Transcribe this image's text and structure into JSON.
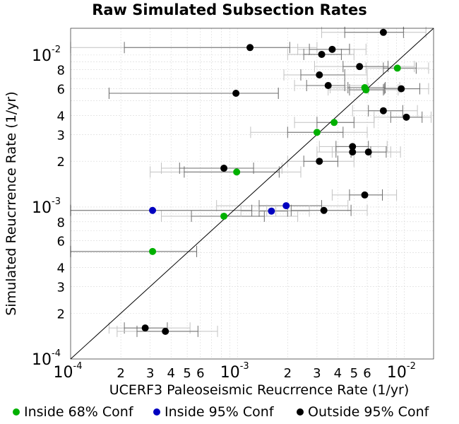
{
  "chart_data": {
    "type": "scatter",
    "title": "Raw Simulated Subsection Rates",
    "xlabel": "UCERF3 Paleoseismic Reucrrence Rate (1/yr)",
    "ylabel": "Simulated Reucrrence Rate (1/yr)",
    "xscale": "log",
    "yscale": "log",
    "xlim": [
      0.0001,
      0.015
    ],
    "ylim": [
      0.0001,
      0.015
    ],
    "grid": true,
    "reference_line": "y = x",
    "legend_position": "bottom",
    "x_tick_labels": [
      {
        "value": 0.0001,
        "base": "10",
        "exp": "-4"
      },
      {
        "value": 0.0002,
        "base": "2",
        "exp": ""
      },
      {
        "value": 0.0003,
        "base": "3",
        "exp": ""
      },
      {
        "value": 0.0004,
        "base": "4",
        "exp": ""
      },
      {
        "value": 0.0005,
        "base": "5",
        "exp": ""
      },
      {
        "value": 0.0006,
        "base": "6",
        "exp": ""
      },
      {
        "value": 0.001,
        "base": "10",
        "exp": "-3"
      },
      {
        "value": 0.002,
        "base": "2",
        "exp": ""
      },
      {
        "value": 0.003,
        "base": "3",
        "exp": ""
      },
      {
        "value": 0.004,
        "base": "4",
        "exp": ""
      },
      {
        "value": 0.005,
        "base": "5",
        "exp": ""
      },
      {
        "value": 0.006,
        "base": "6",
        "exp": ""
      },
      {
        "value": 0.01,
        "base": "10",
        "exp": "-2"
      }
    ],
    "y_tick_labels": [
      {
        "value": 0.0001,
        "base": "10",
        "exp": "-4"
      },
      {
        "value": 0.0002,
        "base": "2",
        "exp": ""
      },
      {
        "value": 0.0003,
        "base": "3",
        "exp": ""
      },
      {
        "value": 0.0004,
        "base": "4",
        "exp": ""
      },
      {
        "value": 0.0006,
        "base": "6",
        "exp": ""
      },
      {
        "value": 0.0008,
        "base": "8",
        "exp": ""
      },
      {
        "value": 0.001,
        "base": "10",
        "exp": "-3"
      },
      {
        "value": 0.002,
        "base": "2",
        "exp": ""
      },
      {
        "value": 0.003,
        "base": "3",
        "exp": ""
      },
      {
        "value": 0.004,
        "base": "4",
        "exp": ""
      },
      {
        "value": 0.006,
        "base": "6",
        "exp": ""
      },
      {
        "value": 0.008,
        "base": "8",
        "exp": ""
      },
      {
        "value": 0.01,
        "base": "10",
        "exp": "-2"
      }
    ],
    "series": [
      {
        "name": "Inside 68% Conf",
        "color": "#00b000",
        "points": [
          {
            "x": 0.0091,
            "y": 0.0082,
            "ci68": [
              0.0075,
              0.0118
            ],
            "ci95": [
              0.0059,
              0.014
            ]
          },
          {
            "x": 0.0058,
            "y": 0.0061,
            "ci68": [
              0.0046,
              0.0077
            ],
            "ci95": [
              0.0036,
              0.0094
            ]
          },
          {
            "x": 0.0059,
            "y": 0.0059,
            "ci68": [
              0.0047,
              0.0075
            ],
            "ci95": [
              0.0035,
              0.0092
            ]
          },
          {
            "x": 0.0038,
            "y": 0.0036,
            "ci68": [
              0.003,
              0.005
            ],
            "ci95": [
              0.0022,
              0.0066
            ]
          },
          {
            "x": 0.003,
            "y": 0.0031,
            "ci68": [
              0.002,
              0.0043
            ],
            "ci95": [
              0.0012,
              0.006
            ]
          },
          {
            "x": 0.00099,
            "y": 0.0017,
            "ci68": [
              0.00048,
              0.00178
            ],
            "ci95": [
              0.0003,
              0.0024
            ]
          },
          {
            "x": 0.00083,
            "y": 0.00087,
            "ci68": [
              0.00053,
              0.00145
            ],
            "ci95": [
              0.00035,
              0.0023
            ]
          },
          {
            "x": 0.00031,
            "y": 0.00051,
            "ci68": [
              0.0001,
              0.00057
            ],
            "ci95": [
              0.0001,
              0.00057
            ]
          }
        ]
      },
      {
        "name": "Inside 95% Conf",
        "color": "#0000c0",
        "points": [
          {
            "x": 0.00196,
            "y": 0.00102,
            "ci68": [
              0.00135,
              0.0032
            ],
            "ci95": [
              0.00075,
              0.0046
            ]
          },
          {
            "x": 0.0016,
            "y": 0.00094,
            "ci68": [
              0.00135,
              0.002
            ],
            "ci95": [
              0.00105,
              0.0027
            ]
          },
          {
            "x": 0.00031,
            "y": 0.00095,
            "ci68": [
              0.0001,
              0.00122
            ],
            "ci95": [
              0.0001,
              0.0017
            ]
          }
        ]
      },
      {
        "name": "Outside 95% Conf",
        "color": "#000000",
        "points": [
          {
            "x": 0.0075,
            "y": 0.0141,
            "ci68": [
              0.0044,
              0.0099
            ],
            "ci95": [
              0.0032,
              0.0135
            ]
          },
          {
            "x": 0.00119,
            "y": 0.0112,
            "ci68": [
              0.00021,
              0.00206
            ],
            "ci95": [
              0.0001,
              0.003
            ]
          },
          {
            "x": 0.0037,
            "y": 0.0109,
            "ci68": [
              0.0027,
              0.0047
            ],
            "ci95": [
              0.0023,
              0.0059
            ]
          },
          {
            "x": 0.0032,
            "y": 0.0101,
            "ci68": [
              0.0025,
              0.0042
            ],
            "ci95": [
              0.002,
              0.005
            ]
          },
          {
            "x": 0.0054,
            "y": 0.0084,
            "ci68": [
              0.0043,
              0.008
            ],
            "ci95": [
              0.0029,
              0.0115
            ]
          },
          {
            "x": 0.0031,
            "y": 0.0074,
            "ci68": [
              0.0024,
              0.0044
            ],
            "ci95": [
              0.0019,
              0.006
            ]
          },
          {
            "x": 0.00098,
            "y": 0.0056,
            "ci68": [
              0.00017,
              0.00176
            ],
            "ci95": [
              0.00017,
              0.00176
            ]
          },
          {
            "x": 0.0035,
            "y": 0.0063,
            "ci68": [
              0.0026,
              0.0044
            ],
            "ci95": [
              0.0022,
              0.006
            ]
          },
          {
            "x": 0.0096,
            "y": 0.006,
            "ci68": [
              0.0076,
              0.0124
            ],
            "ci95": [
              0.0061,
              0.014
            ]
          },
          {
            "x": 0.0075,
            "y": 0.0043,
            "ci68": [
              0.0061,
              0.0098
            ],
            "ci95": [
              0.0049,
              0.012
            ]
          },
          {
            "x": 0.0103,
            "y": 0.0039,
            "ci68": [
              0.0083,
              0.0128
            ],
            "ci95": [
              0.0066,
              0.0145
            ]
          },
          {
            "x": 0.0049,
            "y": 0.0025,
            "ci68": [
              0.0039,
              0.0061
            ],
            "ci95": [
              0.0031,
              0.0079
            ]
          },
          {
            "x": 0.0049,
            "y": 0.0023,
            "ci68": [
              0.0039,
              0.0063
            ],
            "ci95": [
              0.003,
              0.0083
            ]
          },
          {
            "x": 0.0061,
            "y": 0.0023,
            "ci68": [
              0.0048,
              0.0078
            ],
            "ci95": [
              0.0037,
              0.0095
            ]
          },
          {
            "x": 0.0031,
            "y": 0.002,
            "ci68": [
              0.0025,
              0.004
            ],
            "ci95": [
              0.002,
              0.005
            ]
          },
          {
            "x": 0.00083,
            "y": 0.0018,
            "ci68": [
              0.00045,
              0.00125
            ],
            "ci95": [
              0.00035,
              0.00185
            ]
          },
          {
            "x": 0.0058,
            "y": 0.0012,
            "ci68": [
              0.0047,
              0.0074
            ],
            "ci95": [
              0.0037,
              0.009
            ]
          },
          {
            "x": 0.0033,
            "y": 0.00095,
            "ci68": [
              0.0021,
              0.0048
            ],
            "ci95": [
              0.0015,
              0.006
            ]
          },
          {
            "x": 0.00028,
            "y": 0.00016,
            "ci68": [
              0.00021,
              0.00038
            ],
            "ci95": [
              0.00017,
              0.00052
            ]
          },
          {
            "x": 0.00037,
            "y": 0.000152,
            "ci68": [
              0.00025,
              0.00058
            ],
            "ci95": [
              0.00019,
              0.00076
            ]
          }
        ]
      }
    ]
  }
}
